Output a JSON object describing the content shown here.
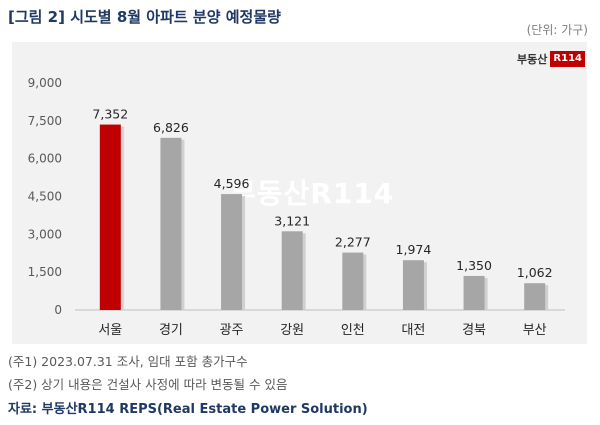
{
  "header": {
    "title": "[그림 2] 시도별 8월 아파트 분양 예정물량",
    "unit": "(단위: 가구)"
  },
  "branding": {
    "logo_text": "부동산",
    "logo_box": "R114",
    "watermark": "부동산R114"
  },
  "chart_data": {
    "type": "bar",
    "title": "[그림 2] 시도별 8월 아파트 분양 예정물량",
    "xlabel": "",
    "ylabel": "",
    "unit": "(단위: 가구)",
    "categories": [
      "서울",
      "경기",
      "광주",
      "강원",
      "인천",
      "대전",
      "경북",
      "부산"
    ],
    "values": [
      7352,
      6826,
      4596,
      3121,
      2277,
      1974,
      1350,
      1062
    ],
    "data_labels": [
      "7,352",
      "6,826",
      "4,596",
      "3,121",
      "2,277",
      "1,974",
      "1,350",
      "1,062"
    ],
    "yticks": [
      "0",
      "1,500",
      "3,000",
      "4,500",
      "6,000",
      "7,500",
      "9,000"
    ],
    "ylim": [
      0,
      9000
    ],
    "grid": false,
    "highlight_color": "#c00000",
    "bar_color": "#a6a6a6"
  },
  "footnotes": [
    "(주1) 2023.07.31 조사, 임대 포함 총가구수",
    "(주2) 상기 내용은 건설사 사정에 따라 변동될 수 있음"
  ],
  "source": "자료: 부동산R114 REPS(Real Estate Power Solution)"
}
